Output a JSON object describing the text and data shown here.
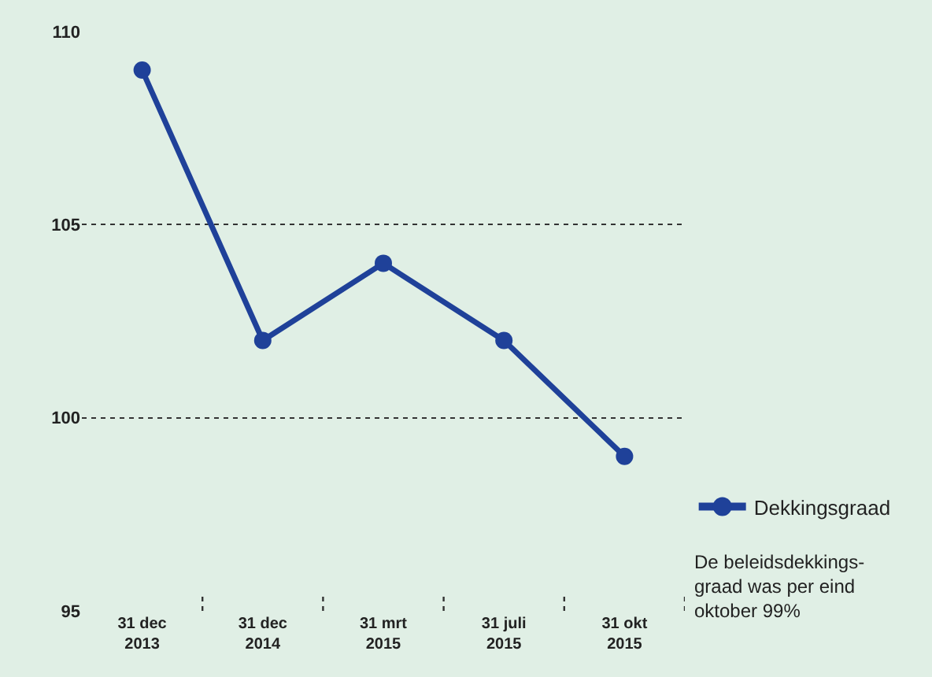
{
  "chart_data": {
    "type": "line",
    "categories": [
      "31 dec\n2013",
      "31 dec\n2014",
      "31 mrt\n2015",
      "31 juli\n2015",
      "31 okt\n2015"
    ],
    "series": [
      {
        "name": "Dekkingsgraad",
        "color": "#1f4199",
        "values": [
          109,
          102,
          104,
          102,
          99
        ]
      }
    ],
    "ylim": [
      95,
      110
    ],
    "yticks": [
      95,
      100,
      105,
      110
    ],
    "grid": "y",
    "legend": "right",
    "marker": "circle",
    "line_style": "solid",
    "annotations": [
      "De beleidsdekkings-\ngraad was per eind\noktober 99%"
    ]
  }
}
